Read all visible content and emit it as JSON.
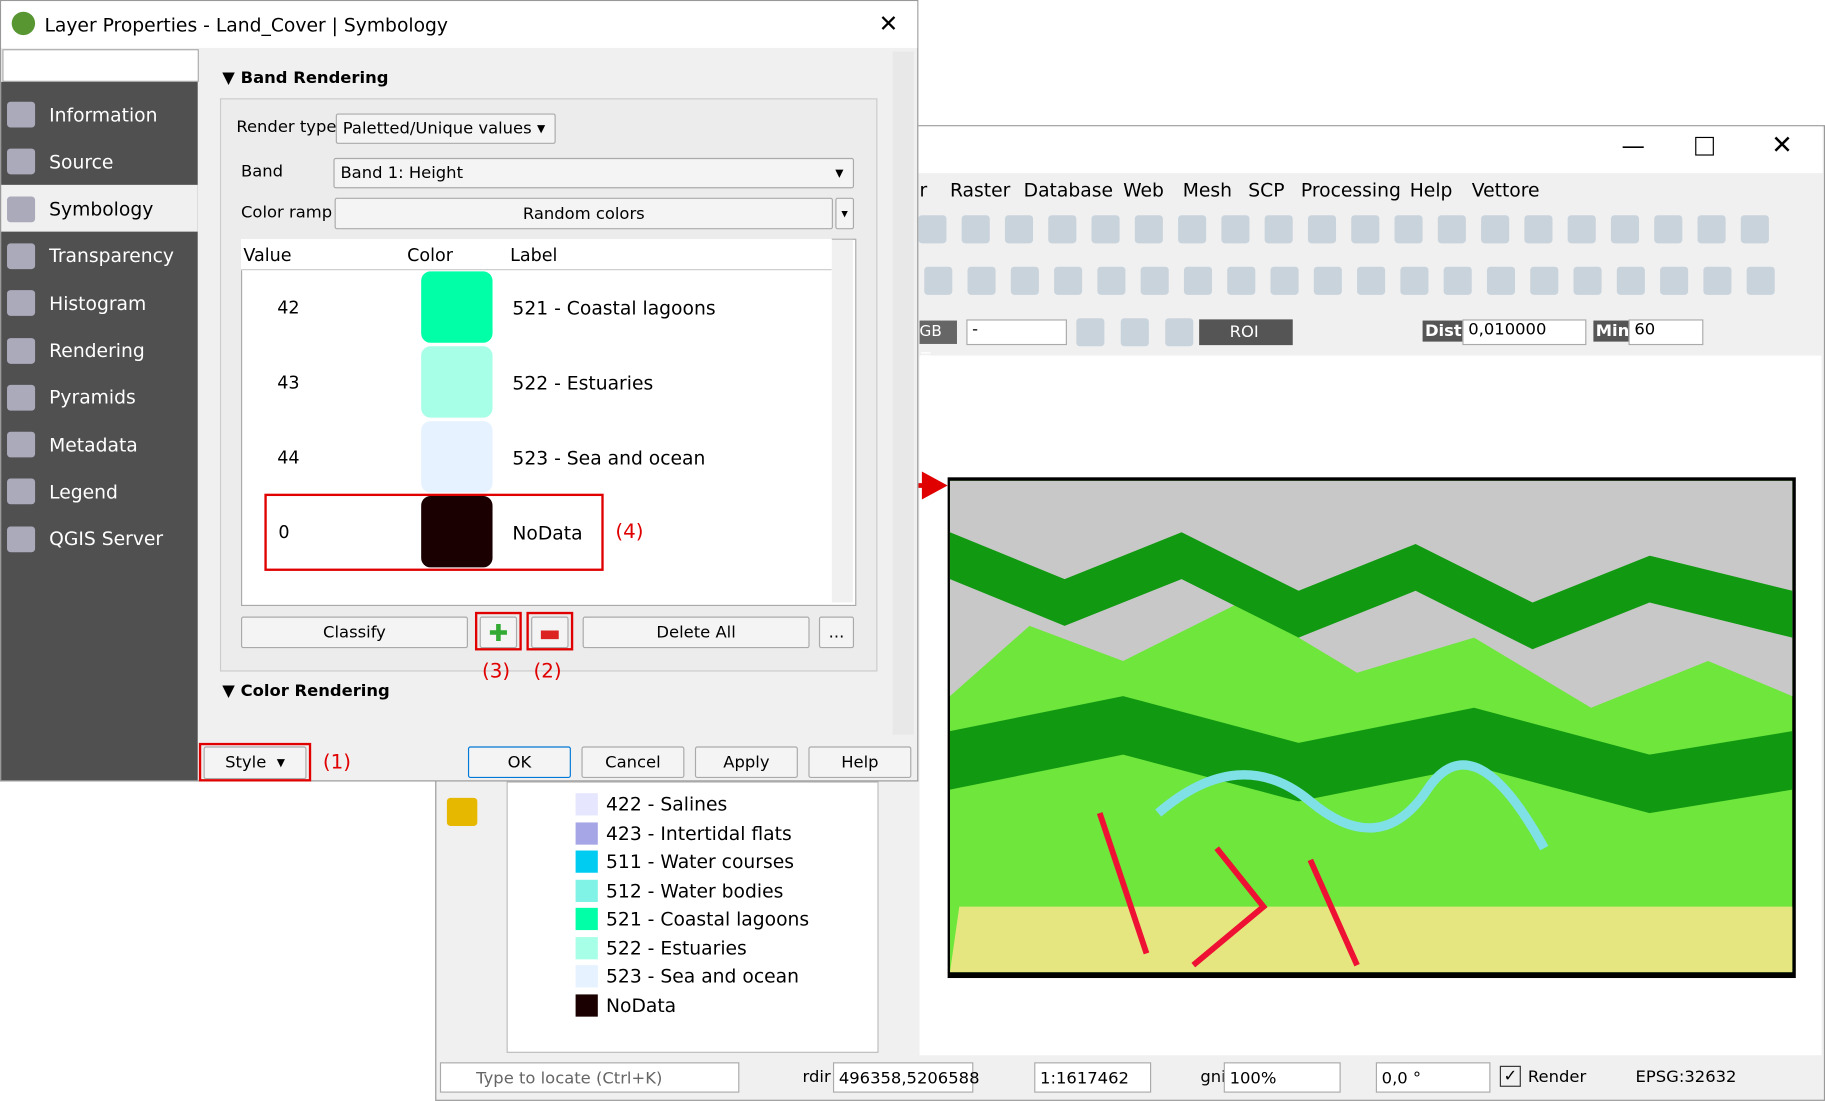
{
  "dialog": {
    "title": "Layer Properties - Land_Cover | Symbology",
    "sidebar": [
      "Information",
      "Source",
      "Symbology",
      "Transparency",
      "Histogram",
      "Rendering",
      "Pyramids",
      "Metadata",
      "Legend",
      "QGIS Server"
    ],
    "band_rendering": {
      "heading": "Band Rendering",
      "render_type_label": "Render type",
      "render_type": "Paletted/Unique values",
      "band_label": "Band",
      "band": "Band 1: Height",
      "color_ramp_label": "Color ramp",
      "color_ramp": "Random colors",
      "table": {
        "headers": [
          "Value",
          "Color",
          "Label"
        ],
        "rows": [
          {
            "value": 42,
            "color": "#00ffa6",
            "label": "521 - Coastal lagoons"
          },
          {
            "value": 43,
            "color": "#a6ffe6",
            "label": "522 - Estuaries"
          },
          {
            "value": 44,
            "color": "#e6f2ff",
            "label": "523 - Sea and ocean"
          },
          {
            "value": 0,
            "color": "#1a0000",
            "label": "NoData"
          }
        ]
      },
      "classify": "Classify",
      "delete_all": "Delete All",
      "more": "..."
    },
    "color_rendering_heading": "Color Rendering",
    "buttons": {
      "style": "Style",
      "ok": "OK",
      "cancel": "Cancel",
      "apply": "Apply",
      "help": "Help"
    },
    "annotations": [
      "(1)",
      "(2)",
      "(3)",
      "(4)"
    ]
  },
  "main": {
    "menu": [
      "r",
      "Raster",
      "Database",
      "Web",
      "Mesh",
      "SCP",
      "Processing",
      "Help",
      "Vettore"
    ],
    "toolbar": {
      "rgb": "GB =",
      "rgb_value": "-",
      "roi": "ROI",
      "dist_label": "Dist",
      "dist": "0,010000",
      "min_label": "Min",
      "min": "60"
    },
    "legend": [
      {
        "label": "422 - Salines",
        "color": "#e6e6ff"
      },
      {
        "label": "423 - Intertidal flats",
        "color": "#a6a6e6"
      },
      {
        "label": "511 - Water courses",
        "color": "#00ccf2"
      },
      {
        "label": "512 - Water bodies",
        "color": "#80f2e6"
      },
      {
        "label": "521 - Coastal lagoons",
        "color": "#00ffa6"
      },
      {
        "label": "522 - Estuaries",
        "color": "#a6ffe6"
      },
      {
        "label": "523 - Sea and ocean",
        "color": "#e6f2ff"
      },
      {
        "label": "NoData",
        "color": "#1a0000"
      }
    ],
    "status": {
      "locate": "Type to locate (Ctrl+K)",
      "coord_label": "rdir",
      "coord": "496358,5206588",
      "scale": "1:1617462",
      "mag_label": "gni",
      "mag": "100%",
      "rot": "0,0 °",
      "render": "Render",
      "crs": "EPSG:32632"
    }
  }
}
